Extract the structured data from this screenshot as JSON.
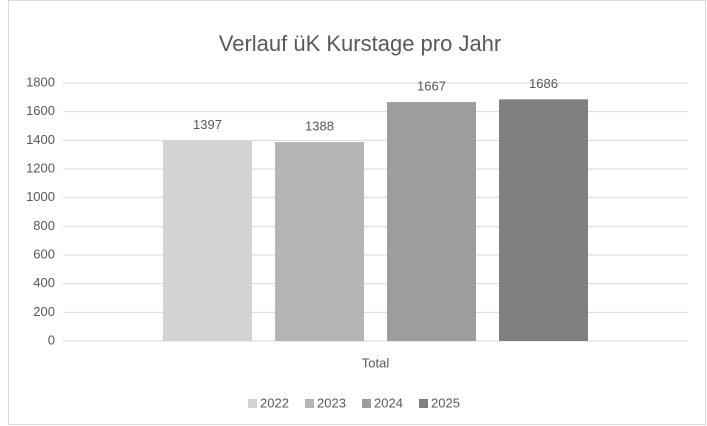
{
  "chart_data": {
    "type": "bar",
    "title": "Verlauf üK Kurstage pro Jahr",
    "categories": [
      "Total"
    ],
    "series": [
      {
        "name": "2022",
        "color": "#d3d3d3",
        "values": [
          1397
        ]
      },
      {
        "name": "2023",
        "color": "#b5b5b5",
        "values": [
          1388
        ]
      },
      {
        "name": "2024",
        "color": "#9d9d9d",
        "values": [
          1667
        ]
      },
      {
        "name": "2025",
        "color": "#808080",
        "values": [
          1686
        ]
      }
    ],
    "ylim": [
      0,
      1800
    ],
    "yticks": [
      0,
      200,
      400,
      600,
      800,
      1000,
      1200,
      1400,
      1600,
      1800
    ],
    "grid": true,
    "legend": "bottom"
  }
}
